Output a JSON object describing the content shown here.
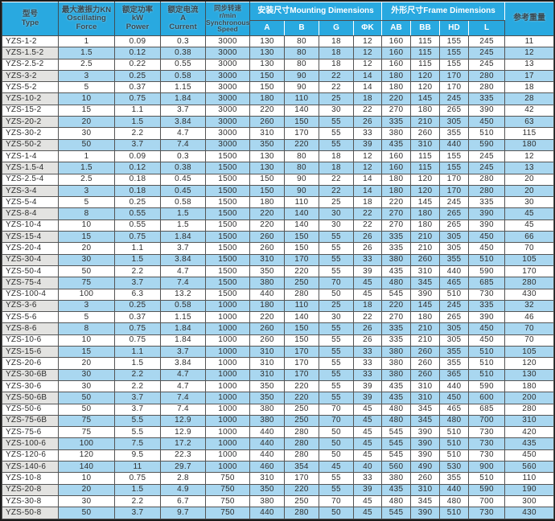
{
  "table": {
    "header": {
      "type": "型号\nType",
      "force": "最大激振力KN\nOscillating\nForce",
      "power": "额定功率\nkW\nPower",
      "current": "额定电流\nA\nCurrent",
      "speed": "同步转速\nr/min\nSynchronous\nSpeed",
      "mounting_group": "安装尺寸Mounting Dimensions",
      "mounting_cols": [
        "A",
        "B",
        "G",
        "ΦK"
      ],
      "frame_group": "外形尺寸Frame Dimensions",
      "frame_cols": [
        "AB",
        "BB",
        "HD",
        "L"
      ],
      "weight": "参考重量"
    },
    "rows": [
      [
        "YZS-1-2",
        "1",
        "0.09",
        "0.3",
        "3000",
        "130",
        "80",
        "18",
        "12",
        "160",
        "115",
        "155",
        "245",
        "11"
      ],
      [
        "YZS-1.5-2",
        "1.5",
        "0.12",
        "0.38",
        "3000",
        "130",
        "80",
        "18",
        "12",
        "160",
        "115",
        "155",
        "245",
        "12"
      ],
      [
        "YZS-2.5-2",
        "2.5",
        "0.22",
        "0.55",
        "3000",
        "130",
        "80",
        "18",
        "12",
        "160",
        "115",
        "155",
        "245",
        "13"
      ],
      [
        "YZS-3-2",
        "3",
        "0.25",
        "0.58",
        "3000",
        "150",
        "90",
        "22",
        "14",
        "180",
        "120",
        "170",
        "280",
        "17"
      ],
      [
        "YZS-5-2",
        "5",
        "0.37",
        "1.15",
        "3000",
        "150",
        "90",
        "22",
        "14",
        "180",
        "120",
        "170",
        "280",
        "18"
      ],
      [
        "YZS-10-2",
        "10",
        "0.75",
        "1.84",
        "3000",
        "180",
        "110",
        "25",
        "18",
        "220",
        "145",
        "245",
        "335",
        "28"
      ],
      [
        "YZS-15-2",
        "15",
        "1.1",
        "3.7",
        "3000",
        "220",
        "140",
        "30",
        "22",
        "270",
        "180",
        "265",
        "390",
        "42"
      ],
      [
        "YZS-20-2",
        "20",
        "1.5",
        "3.84",
        "3000",
        "260",
        "150",
        "55",
        "26",
        "335",
        "210",
        "305",
        "450",
        "63"
      ],
      [
        "YZS-30-2",
        "30",
        "2.2",
        "4.7",
        "3000",
        "310",
        "170",
        "55",
        "33",
        "380",
        "260",
        "355",
        "510",
        "115"
      ],
      [
        "YZS-50-2",
        "50",
        "3.7",
        "7.4",
        "3000",
        "350",
        "220",
        "55",
        "39",
        "435",
        "310",
        "440",
        "590",
        "180"
      ],
      [
        "YZS-1-4",
        "1",
        "0.09",
        "0.3",
        "1500",
        "130",
        "80",
        "18",
        "12",
        "160",
        "115",
        "155",
        "245",
        "12"
      ],
      [
        "YZS-1.5-4",
        "1.5",
        "0.12",
        "0.38",
        "1500",
        "130",
        "80",
        "18",
        "12",
        "160",
        "115",
        "155",
        "245",
        "13"
      ],
      [
        "YZS-2.5-4",
        "2.5",
        "0.18",
        "0.45",
        "1500",
        "150",
        "90",
        "22",
        "14",
        "180",
        "120",
        "170",
        "280",
        "20"
      ],
      [
        "YZS-3-4",
        "3",
        "0.18",
        "0.45",
        "1500",
        "150",
        "90",
        "22",
        "14",
        "180",
        "120",
        "170",
        "280",
        "20"
      ],
      [
        "YZS-5-4",
        "5",
        "0.25",
        "0.58",
        "1500",
        "180",
        "110",
        "25",
        "18",
        "220",
        "145",
        "245",
        "335",
        "30"
      ],
      [
        "YZS-8-4",
        "8",
        "0.55",
        "1.5",
        "1500",
        "220",
        "140",
        "30",
        "22",
        "270",
        "180",
        "265",
        "390",
        "45"
      ],
      [
        "YZS-10-4",
        "10",
        "0.55",
        "1.5",
        "1500",
        "220",
        "140",
        "30",
        "22",
        "270",
        "180",
        "265",
        "390",
        "45"
      ],
      [
        "YZS-15-4",
        "15",
        "0.75",
        "1.84",
        "1500",
        "260",
        "150",
        "55",
        "26",
        "335",
        "210",
        "305",
        "450",
        "66"
      ],
      [
        "YZS-20-4",
        "20",
        "1.1",
        "3.7",
        "1500",
        "260",
        "150",
        "55",
        "26",
        "335",
        "210",
        "305",
        "450",
        "70"
      ],
      [
        "YZS-30-4",
        "30",
        "1.5",
        "3.84",
        "1500",
        "310",
        "170",
        "55",
        "33",
        "380",
        "260",
        "355",
        "510",
        "105"
      ],
      [
        "YZS-50-4",
        "50",
        "2.2",
        "4.7",
        "1500",
        "350",
        "220",
        "55",
        "39",
        "435",
        "310",
        "440",
        "590",
        "170"
      ],
      [
        "YZS-75-4",
        "75",
        "3.7",
        "7.4",
        "1500",
        "380",
        "250",
        "70",
        "45",
        "480",
        "345",
        "465",
        "685",
        "280"
      ],
      [
        "YZS-100-4",
        "100",
        "6.3",
        "13.2",
        "1500",
        "440",
        "280",
        "50",
        "45",
        "545",
        "390",
        "510",
        "730",
        "430"
      ],
      [
        "YZS-3-6",
        "3",
        "0.25",
        "0.58",
        "1000",
        "180",
        "110",
        "25",
        "18",
        "220",
        "145",
        "245",
        "335",
        "32"
      ],
      [
        "YZS-5-6",
        "5",
        "0.37",
        "1.15",
        "1000",
        "220",
        "140",
        "30",
        "22",
        "270",
        "180",
        "265",
        "390",
        "46"
      ],
      [
        "YZS-8-6",
        "8",
        "0.75",
        "1.84",
        "1000",
        "260",
        "150",
        "55",
        "26",
        "335",
        "210",
        "305",
        "450",
        "70"
      ],
      [
        "YZS-10-6",
        "10",
        "0.75",
        "1.84",
        "1000",
        "260",
        "150",
        "55",
        "26",
        "335",
        "210",
        "305",
        "450",
        "70"
      ],
      [
        "YZS-15-6",
        "15",
        "1.1",
        "3.7",
        "1000",
        "310",
        "170",
        "55",
        "33",
        "380",
        "260",
        "355",
        "510",
        "105"
      ],
      [
        "YZS-20-6",
        "20",
        "1.5",
        "3.84",
        "1000",
        "310",
        "170",
        "55",
        "33",
        "380",
        "260",
        "355",
        "510",
        "120"
      ],
      [
        "YZS-30-6B",
        "30",
        "2.2",
        "4.7",
        "1000",
        "310",
        "170",
        "55",
        "33",
        "380",
        "260",
        "365",
        "510",
        "130"
      ],
      [
        "YZS-30-6",
        "30",
        "2.2",
        "4.7",
        "1000",
        "350",
        "220",
        "55",
        "39",
        "435",
        "310",
        "440",
        "590",
        "180"
      ],
      [
        "YZS-50-6B",
        "50",
        "3.7",
        "7.4",
        "1000",
        "350",
        "220",
        "55",
        "39",
        "435",
        "310",
        "450",
        "600",
        "200"
      ],
      [
        "YZS-50-6",
        "50",
        "3.7",
        "7.4",
        "1000",
        "380",
        "250",
        "70",
        "45",
        "480",
        "345",
        "465",
        "685",
        "280"
      ],
      [
        "YZS-75-6B",
        "75",
        "5.5",
        "12.9",
        "1000",
        "380",
        "250",
        "70",
        "45",
        "480",
        "345",
        "480",
        "700",
        "310"
      ],
      [
        "YZS-75-6",
        "75",
        "5.5",
        "12.9",
        "1000",
        "440",
        "280",
        "50",
        "45",
        "545",
        "390",
        "510",
        "730",
        "420"
      ],
      [
        "YZS-100-6",
        "100",
        "7.5",
        "17.2",
        "1000",
        "440",
        "280",
        "50",
        "45",
        "545",
        "390",
        "510",
        "730",
        "435"
      ],
      [
        "YZS-120-6",
        "120",
        "9.5",
        "22.3",
        "1000",
        "440",
        "280",
        "50",
        "45",
        "545",
        "390",
        "510",
        "730",
        "450"
      ],
      [
        "YZS-140-6",
        "140",
        "11",
        "29.7",
        "1000",
        "460",
        "354",
        "45",
        "40",
        "560",
        "490",
        "530",
        "900",
        "560"
      ],
      [
        "YZS-10-8",
        "10",
        "0.75",
        "2.8",
        "750",
        "310",
        "170",
        "55",
        "33",
        "380",
        "260",
        "355",
        "510",
        "110"
      ],
      [
        "YZS-20-8",
        "20",
        "1.5",
        "4.9",
        "750",
        "350",
        "220",
        "55",
        "39",
        "435",
        "310",
        "440",
        "590",
        "190"
      ],
      [
        "YZS-30-8",
        "30",
        "2.2",
        "6.7",
        "750",
        "380",
        "250",
        "70",
        "45",
        "480",
        "345",
        "480",
        "700",
        "300"
      ],
      [
        "YZS-50-8",
        "50",
        "3.7",
        "9.7",
        "750",
        "440",
        "280",
        "50",
        "45",
        "545",
        "390",
        "510",
        "730",
        "430"
      ]
    ]
  },
  "colors": {
    "header_bg": "#29a9e0",
    "header_text_dark": "#37474f",
    "header_text_light": "#ffffff",
    "row_alt_bg": "#a9d7f0",
    "type_alt_bg": "#e3e3e1",
    "grid": "#555555",
    "body_text": "#2e2e2e"
  },
  "chart_data": {
    "type": "table",
    "columns": [
      "型号 Type",
      "最大激振力KN Oscillating Force",
      "额定功率 kW Power",
      "额定电流 A Current",
      "同步转速 r/min Synchronous Speed",
      "安装尺寸Mounting Dimensions A",
      "安装尺寸Mounting Dimensions B",
      "安装尺寸Mounting Dimensions G",
      "安装尺寸Mounting Dimensions ΦK",
      "外形尺寸Frame Dimensions AB",
      "外形尺寸Frame Dimensions BB",
      "外形尺寸Frame Dimensions HD",
      "外形尺寸Frame Dimensions L",
      "参考重量"
    ],
    "rows": [
      [
        "YZS-1-2",
        1,
        0.09,
        0.3,
        3000,
        130,
        80,
        18,
        12,
        160,
        115,
        155,
        245,
        11
      ],
      [
        "YZS-1.5-2",
        1.5,
        0.12,
        0.38,
        3000,
        130,
        80,
        18,
        12,
        160,
        115,
        155,
        245,
        12
      ],
      [
        "YZS-2.5-2",
        2.5,
        0.22,
        0.55,
        3000,
        130,
        80,
        18,
        12,
        160,
        115,
        155,
        245,
        13
      ],
      [
        "YZS-3-2",
        3,
        0.25,
        0.58,
        3000,
        150,
        90,
        22,
        14,
        180,
        120,
        170,
        280,
        17
      ],
      [
        "YZS-5-2",
        5,
        0.37,
        1.15,
        3000,
        150,
        90,
        22,
        14,
        180,
        120,
        170,
        280,
        18
      ],
      [
        "YZS-10-2",
        10,
        0.75,
        1.84,
        3000,
        180,
        110,
        25,
        18,
        220,
        145,
        245,
        335,
        28
      ],
      [
        "YZS-15-2",
        15,
        1.1,
        3.7,
        3000,
        220,
        140,
        30,
        22,
        270,
        180,
        265,
        390,
        42
      ],
      [
        "YZS-20-2",
        20,
        1.5,
        3.84,
        3000,
        260,
        150,
        55,
        26,
        335,
        210,
        305,
        450,
        63
      ],
      [
        "YZS-30-2",
        30,
        2.2,
        4.7,
        3000,
        310,
        170,
        55,
        33,
        380,
        260,
        355,
        510,
        115
      ],
      [
        "YZS-50-2",
        50,
        3.7,
        7.4,
        3000,
        350,
        220,
        55,
        39,
        435,
        310,
        440,
        590,
        180
      ],
      [
        "YZS-1-4",
        1,
        0.09,
        0.3,
        1500,
        130,
        80,
        18,
        12,
        160,
        115,
        155,
        245,
        12
      ],
      [
        "YZS-1.5-4",
        1.5,
        0.12,
        0.38,
        1500,
        130,
        80,
        18,
        12,
        160,
        115,
        155,
        245,
        13
      ],
      [
        "YZS-2.5-4",
        2.5,
        0.18,
        0.45,
        1500,
        150,
        90,
        22,
        14,
        180,
        120,
        170,
        280,
        20
      ],
      [
        "YZS-3-4",
        3,
        0.18,
        0.45,
        1500,
        150,
        90,
        22,
        14,
        180,
        120,
        170,
        280,
        20
      ],
      [
        "YZS-5-4",
        5,
        0.25,
        0.58,
        1500,
        180,
        110,
        25,
        18,
        220,
        145,
        245,
        335,
        30
      ],
      [
        "YZS-8-4",
        8,
        0.55,
        1.5,
        1500,
        220,
        140,
        30,
        22,
        270,
        180,
        265,
        390,
        45
      ],
      [
        "YZS-10-4",
        10,
        0.55,
        1.5,
        1500,
        220,
        140,
        30,
        22,
        270,
        180,
        265,
        390,
        45
      ],
      [
        "YZS-15-4",
        15,
        0.75,
        1.84,
        1500,
        260,
        150,
        55,
        26,
        335,
        210,
        305,
        450,
        66
      ],
      [
        "YZS-20-4",
        20,
        1.1,
        3.7,
        1500,
        260,
        150,
        55,
        26,
        335,
        210,
        305,
        450,
        70
      ],
      [
        "YZS-30-4",
        30,
        1.5,
        3.84,
        1500,
        310,
        170,
        55,
        33,
        380,
        260,
        355,
        510,
        105
      ],
      [
        "YZS-50-4",
        50,
        2.2,
        4.7,
        1500,
        350,
        220,
        55,
        39,
        435,
        310,
        440,
        590,
        170
      ],
      [
        "YZS-75-4",
        75,
        3.7,
        7.4,
        1500,
        380,
        250,
        70,
        45,
        480,
        345,
        465,
        685,
        280
      ],
      [
        "YZS-100-4",
        100,
        6.3,
        13.2,
        1500,
        440,
        280,
        50,
        45,
        545,
        390,
        510,
        730,
        430
      ],
      [
        "YZS-3-6",
        3,
        0.25,
        0.58,
        1000,
        180,
        110,
        25,
        18,
        220,
        145,
        245,
        335,
        32
      ],
      [
        "YZS-5-6",
        5,
        0.37,
        1.15,
        1000,
        220,
        140,
        30,
        22,
        270,
        180,
        265,
        390,
        46
      ],
      [
        "YZS-8-6",
        8,
        0.75,
        1.84,
        1000,
        260,
        150,
        55,
        26,
        335,
        210,
        305,
        450,
        70
      ],
      [
        "YZS-10-6",
        10,
        0.75,
        1.84,
        1000,
        260,
        150,
        55,
        26,
        335,
        210,
        305,
        450,
        70
      ],
      [
        "YZS-15-6",
        15,
        1.1,
        3.7,
        1000,
        310,
        170,
        55,
        33,
        380,
        260,
        355,
        510,
        105
      ],
      [
        "YZS-20-6",
        20,
        1.5,
        3.84,
        1000,
        310,
        170,
        55,
        33,
        380,
        260,
        355,
        510,
        120
      ],
      [
        "YZS-30-6B",
        30,
        2.2,
        4.7,
        1000,
        310,
        170,
        55,
        33,
        380,
        260,
        365,
        510,
        130
      ],
      [
        "YZS-30-6",
        30,
        2.2,
        4.7,
        1000,
        350,
        220,
        55,
        39,
        435,
        310,
        440,
        590,
        180
      ],
      [
        "YZS-50-6B",
        50,
        3.7,
        7.4,
        1000,
        350,
        220,
        55,
        39,
        435,
        310,
        450,
        600,
        200
      ],
      [
        "YZS-50-6",
        50,
        3.7,
        7.4,
        1000,
        380,
        250,
        70,
        45,
        480,
        345,
        465,
        685,
        280
      ],
      [
        "YZS-75-6B",
        75,
        5.5,
        12.9,
        1000,
        380,
        250,
        70,
        45,
        480,
        345,
        480,
        700,
        310
      ],
      [
        "YZS-75-6",
        75,
        5.5,
        12.9,
        1000,
        440,
        280,
        50,
        45,
        545,
        390,
        510,
        730,
        420
      ],
      [
        "YZS-100-6",
        100,
        7.5,
        17.2,
        1000,
        440,
        280,
        50,
        45,
        545,
        390,
        510,
        730,
        435
      ],
      [
        "YZS-120-6",
        120,
        9.5,
        22.3,
        1000,
        440,
        280,
        50,
        45,
        545,
        390,
        510,
        730,
        450
      ],
      [
        "YZS-140-6",
        140,
        11,
        29.7,
        1000,
        460,
        354,
        45,
        40,
        560,
        490,
        530,
        900,
        560
      ],
      [
        "YZS-10-8",
        10,
        0.75,
        2.8,
        750,
        310,
        170,
        55,
        33,
        380,
        260,
        355,
        510,
        110
      ],
      [
        "YZS-20-8",
        20,
        1.5,
        4.9,
        750,
        350,
        220,
        55,
        39,
        435,
        310,
        440,
        590,
        190
      ],
      [
        "YZS-30-8",
        30,
        2.2,
        6.7,
        750,
        380,
        250,
        70,
        45,
        480,
        345,
        480,
        700,
        300
      ],
      [
        "YZS-50-8",
        50,
        3.7,
        9.7,
        750,
        440,
        280,
        50,
        45,
        545,
        390,
        510,
        730,
        430
      ]
    ]
  }
}
